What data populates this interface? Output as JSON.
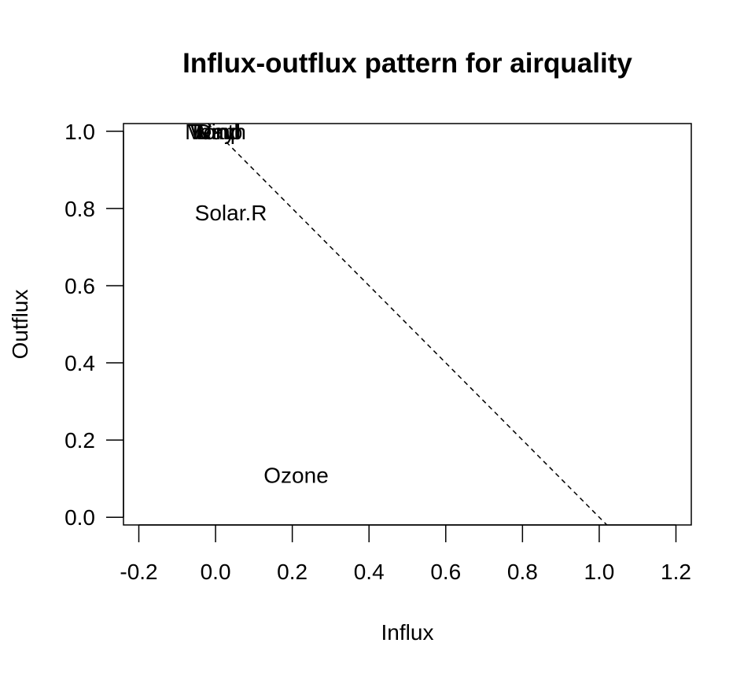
{
  "chart_data": {
    "type": "scatter",
    "title": "Influx-outflux pattern for airquality",
    "xlabel": "Influx",
    "ylabel": "Outflux",
    "xlim": [
      -0.24,
      1.24
    ],
    "ylim": [
      -0.02,
      1.02
    ],
    "x_ticks": [
      -0.2,
      0.0,
      0.2,
      0.4,
      0.6,
      0.8,
      1.0,
      1.2
    ],
    "y_ticks": [
      0.0,
      0.2,
      0.4,
      0.6,
      0.8,
      1.0
    ],
    "x_tick_labels": [
      "-0.2",
      "0.0",
      "0.2",
      "0.4",
      "0.6",
      "0.8",
      "1.0",
      "1.2"
    ],
    "y_tick_labels": [
      "0.0",
      "0.2",
      "0.4",
      "0.6",
      "0.8",
      "1.0"
    ],
    "grid": false,
    "points": [
      {
        "label": "Month",
        "x": 0.0,
        "y": 1.0
      },
      {
        "label": "Wind",
        "x": 0.0,
        "y": 1.0
      },
      {
        "label": "Temp",
        "x": 0.0,
        "y": 1.0
      },
      {
        "label": "Day",
        "x": 0.0,
        "y": 1.0
      },
      {
        "label": "Solar.R",
        "x": 0.04,
        "y": 0.79
      },
      {
        "label": "Ozone",
        "x": 0.21,
        "y": 0.11
      }
    ],
    "reference_line": {
      "style": "dashed",
      "intercept": 1.0,
      "slope": -1.0
    }
  }
}
